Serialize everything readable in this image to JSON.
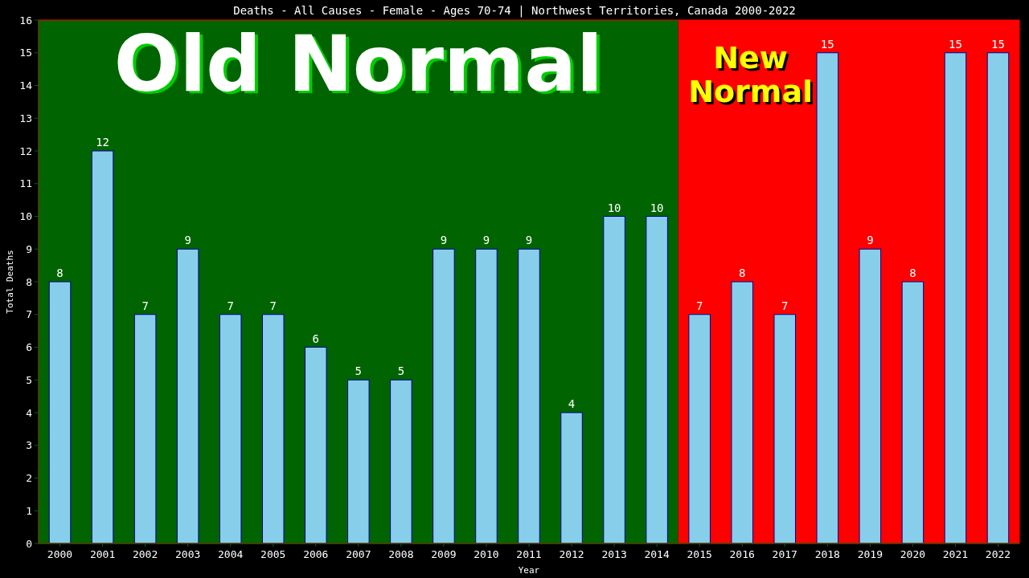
{
  "chart_data": {
    "type": "bar",
    "title": "Deaths - All Causes - Female - Ages 70-74 | Northwest Territories, Canada 2000-2022",
    "xlabel": "Year",
    "ylabel": "Total Deaths",
    "categories": [
      "2000",
      "2001",
      "2002",
      "2003",
      "2004",
      "2005",
      "2006",
      "2007",
      "2008",
      "2009",
      "2010",
      "2011",
      "2012",
      "2013",
      "2014",
      "2015",
      "2016",
      "2017",
      "2018",
      "2019",
      "2020",
      "2021",
      "2022"
    ],
    "values": [
      8,
      12,
      7,
      9,
      7,
      7,
      6,
      5,
      5,
      9,
      9,
      9,
      4,
      10,
      10,
      7,
      8,
      7,
      15,
      9,
      8,
      15,
      15
    ],
    "color": "#87ceeb",
    "ylim": [
      0,
      16
    ],
    "yticks": [
      0,
      1,
      2,
      3,
      4,
      5,
      6,
      7,
      8,
      9,
      10,
      11,
      12,
      13,
      14,
      15,
      16
    ],
    "grid": false,
    "data_labels": true,
    "bands": [
      {
        "axis": "x",
        "from": "2000",
        "to": "2014",
        "label": "Old Normal",
        "color": "#006400"
      },
      {
        "axis": "x",
        "from": "2015",
        "to": "2022",
        "label": "New Normal",
        "color": "#ff0000"
      }
    ]
  }
}
